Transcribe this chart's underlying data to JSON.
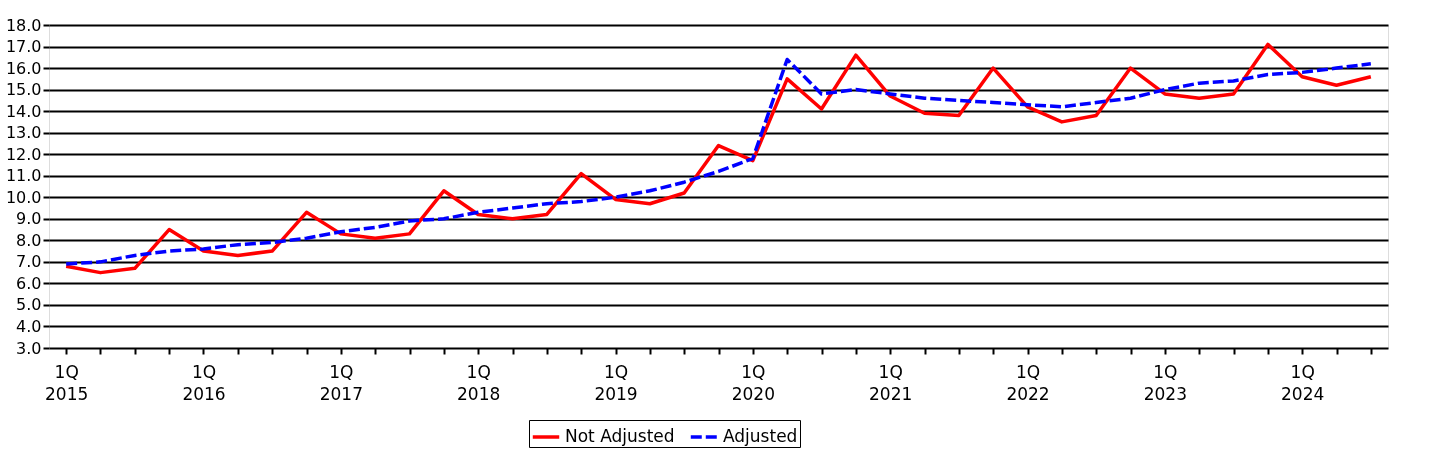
{
  "chart_data": {
    "type": "line",
    "categories": [
      "1Q 2015",
      null,
      null,
      null,
      "1Q 2016",
      null,
      null,
      null,
      "1Q 2017",
      null,
      null,
      null,
      "1Q 2018",
      null,
      null,
      null,
      "1Q 2019",
      null,
      null,
      null,
      "1Q 2020",
      null,
      null,
      null,
      "1Q 2021",
      null,
      null,
      null,
      "1Q 2022",
      null,
      null,
      null,
      "1Q 2023",
      null,
      null,
      null,
      "1Q 2024",
      null,
      null
    ],
    "series": [
      {
        "name": "Not Adjusted",
        "color": "#ff0000",
        "line_style": "solid",
        "values": [
          6.8,
          6.5,
          6.7,
          8.5,
          7.5,
          7.3,
          7.5,
          9.3,
          8.3,
          8.1,
          8.3,
          10.3,
          9.2,
          9.0,
          9.2,
          11.1,
          9.9,
          9.7,
          10.2,
          12.4,
          11.7,
          15.5,
          14.1,
          16.6,
          14.7,
          13.9,
          13.8,
          16.0,
          14.2,
          13.5,
          13.8,
          16.0,
          14.8,
          14.6,
          14.8,
          17.1,
          15.6,
          15.2,
          15.6
        ]
      },
      {
        "name": "Adjusted",
        "color": "#0000ff",
        "line_style": "dashed",
        "values": [
          6.9,
          7.0,
          7.3,
          7.5,
          7.6,
          7.8,
          7.9,
          8.1,
          8.4,
          8.6,
          8.9,
          9.0,
          9.3,
          9.5,
          9.7,
          9.8,
          10.0,
          10.3,
          10.7,
          11.2,
          11.8,
          16.4,
          14.8,
          15.0,
          14.8,
          14.6,
          14.5,
          14.4,
          14.3,
          14.2,
          14.4,
          14.6,
          15.0,
          15.3,
          15.4,
          15.7,
          15.8,
          16.0,
          16.2
        ]
      }
    ],
    "ylim": [
      3.0,
      18.0
    ],
    "yticks": [
      {
        "value": 3,
        "label": "3.0"
      },
      {
        "value": 4,
        "label": "4.0"
      },
      {
        "value": 5,
        "label": "5.0"
      },
      {
        "value": 6,
        "label": "6.0"
      },
      {
        "value": 7,
        "label": "7.0"
      },
      {
        "value": 8,
        "label": "8.0"
      },
      {
        "value": 9,
        "label": "9.0"
      },
      {
        "value": 10,
        "label": "10.0"
      },
      {
        "value": 11,
        "label": "11.0"
      },
      {
        "value": 12,
        "label": "12.0"
      },
      {
        "value": 13,
        "label": "13.0"
      },
      {
        "value": 14,
        "label": "14.0"
      },
      {
        "value": 15,
        "label": "15.0"
      },
      {
        "value": 16,
        "label": "16.0"
      },
      {
        "value": 17,
        "label": "17.0"
      },
      {
        "value": 18,
        "label": "18.0"
      }
    ],
    "grid": "y",
    "legend": "bottom",
    "marker": "none"
  }
}
